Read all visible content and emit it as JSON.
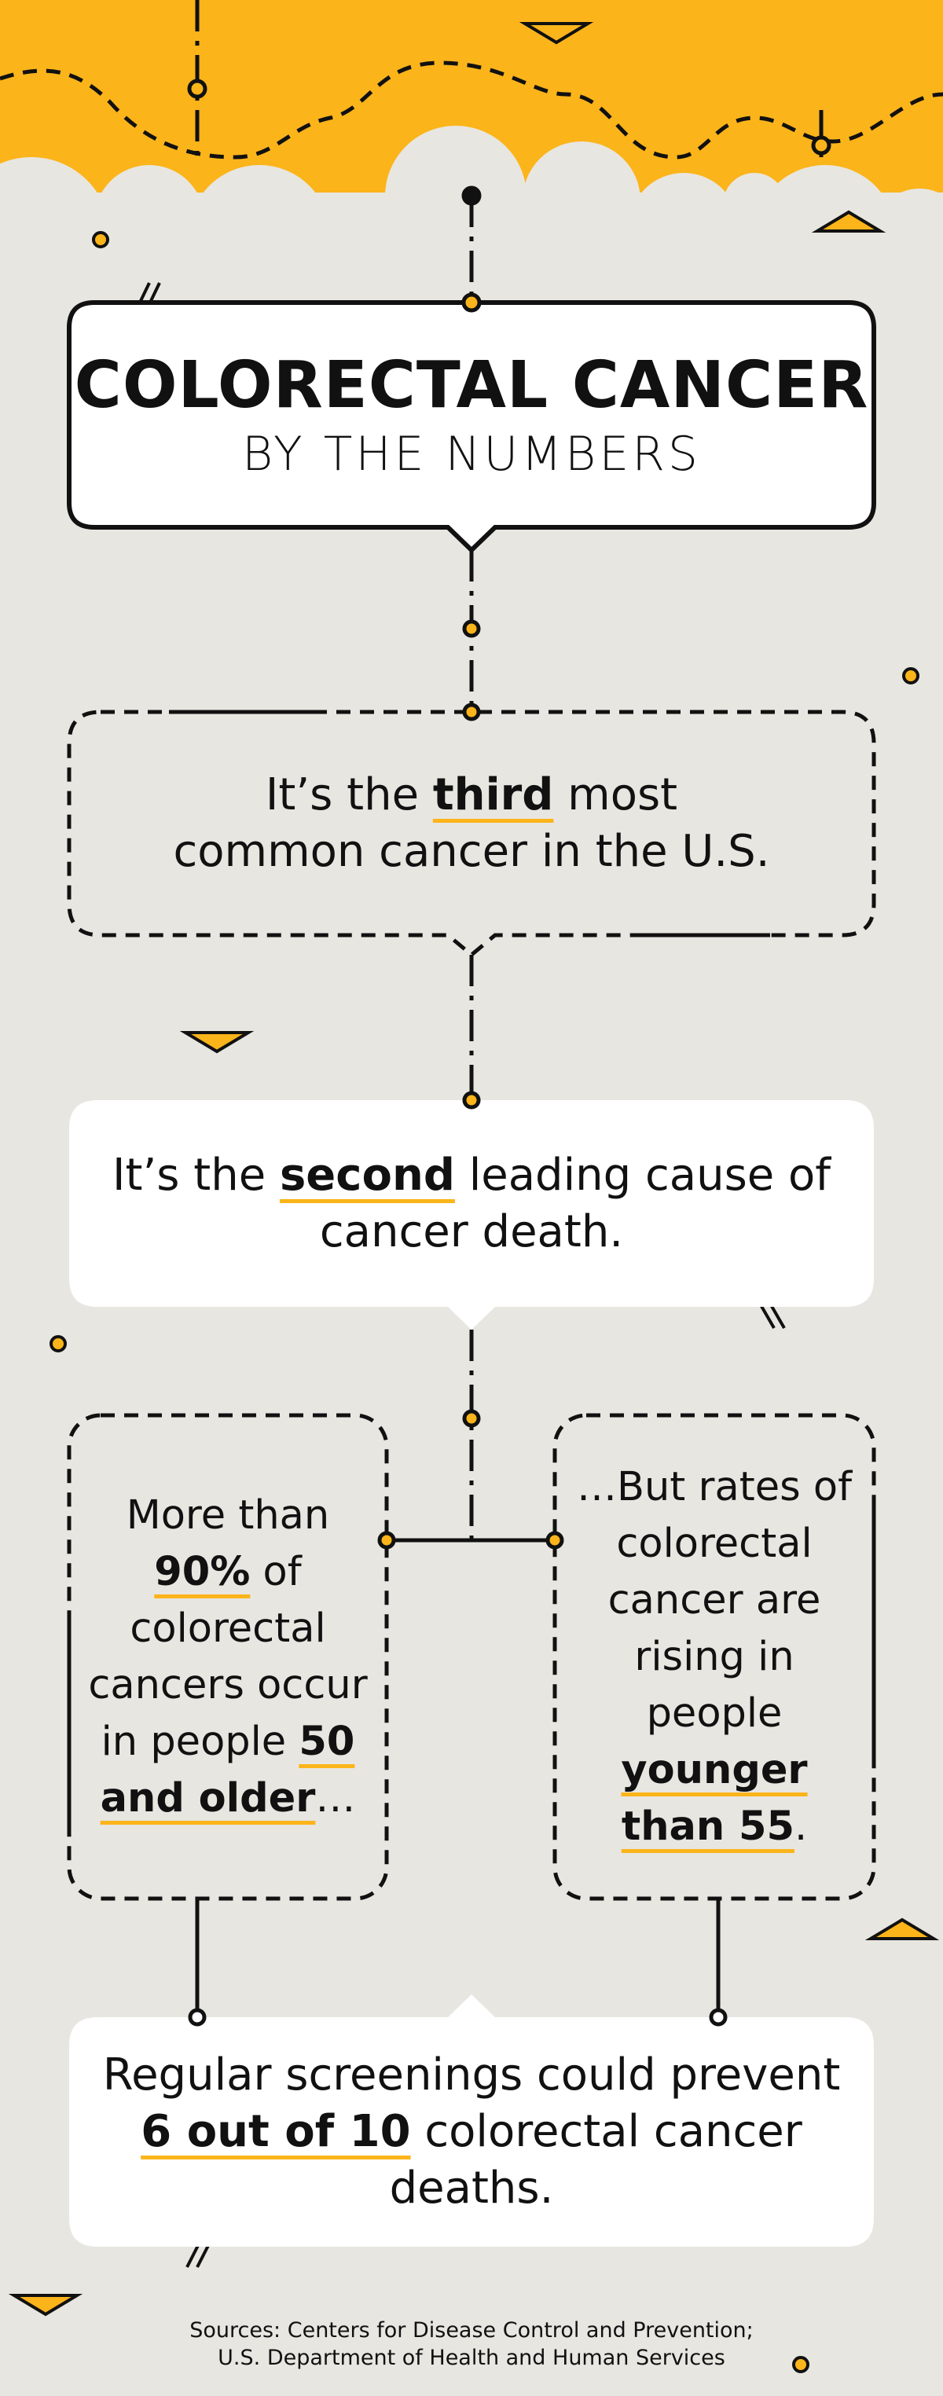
{
  "title": "COLORECTAL CANCER",
  "subtitle": "BY THE NUMBERS",
  "facts": [
    {
      "parts": [
        {
          "text": "It’s the ",
          "emphasis": false
        },
        {
          "text": "third",
          "emphasis": true
        },
        {
          "text": " most common cancer in the U.S.",
          "emphasis": false
        }
      ]
    },
    {
      "parts": [
        {
          "text": "It’s the ",
          "emphasis": false
        },
        {
          "text": "second",
          "emphasis": true
        },
        {
          "text": " leading cause of cancer death.",
          "emphasis": false
        }
      ]
    },
    {
      "parts": [
        {
          "text": "More than ",
          "emphasis": false
        },
        {
          "text": "90%",
          "emphasis": true
        },
        {
          "text": " of colorectal cancers occur in people ",
          "emphasis": false
        },
        {
          "text": "50 and older",
          "emphasis": true
        },
        {
          "text": "…",
          "emphasis": false
        }
      ]
    },
    {
      "parts": [
        {
          "text": "…But rates of colorectal cancer are rising in people ",
          "emphasis": false
        },
        {
          "text": "younger than 55",
          "emphasis": true
        },
        {
          "text": ".",
          "emphasis": false
        }
      ]
    },
    {
      "parts": [
        {
          "text": "Regular screenings could prevent ",
          "emphasis": false
        },
        {
          "text": "6 out of 10",
          "emphasis": true
        },
        {
          "text": " colorectal cancer deaths.",
          "emphasis": false
        }
      ]
    }
  ],
  "sources": [
    "Sources: Centers for Disease Control and Prevention;",
    "U.S. Department of Health and Human Services"
  ]
}
